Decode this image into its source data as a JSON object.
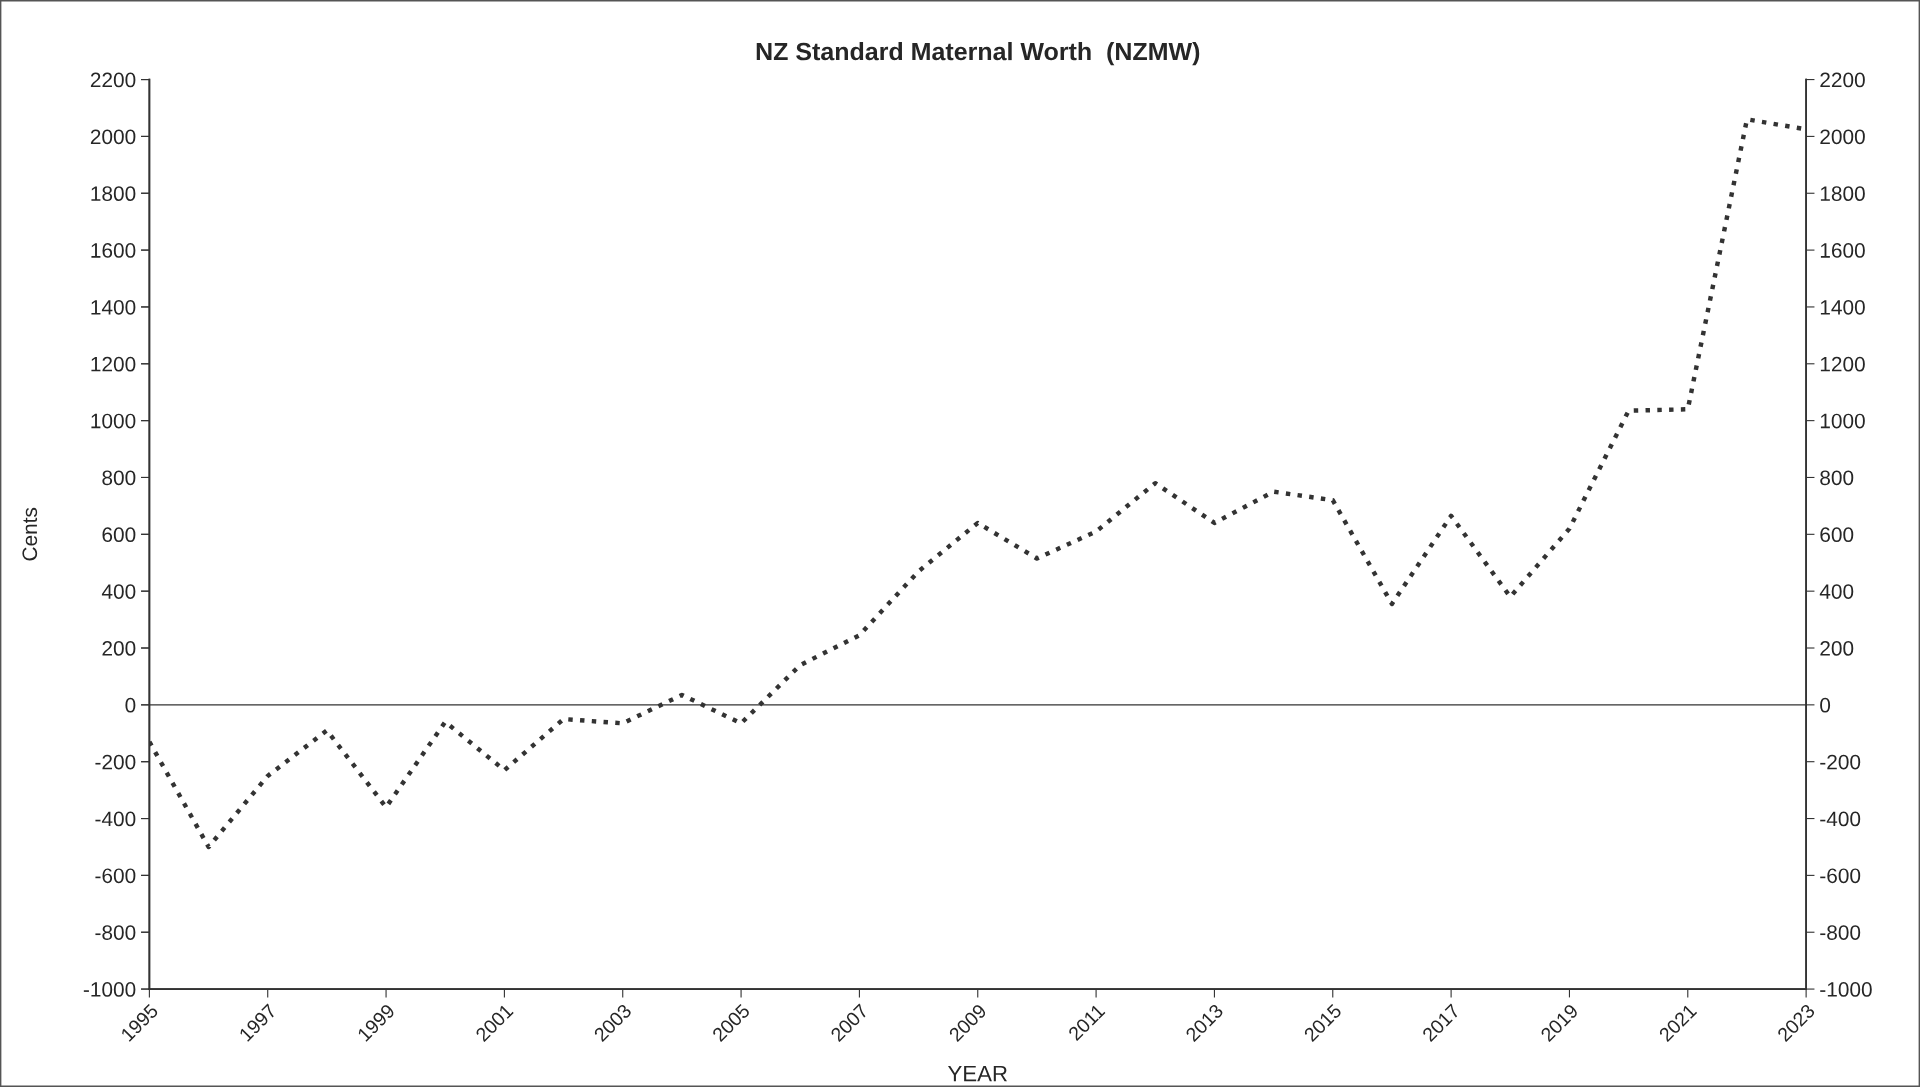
{
  "chart_data": {
    "type": "line",
    "title": "NZ Standard Maternal Worth  (NZMW)",
    "xlabel": "YEAR",
    "ylabel": "Cents",
    "x": [
      1995,
      1996,
      1997,
      1998,
      1999,
      2000,
      2001,
      2002,
      2003,
      2004,
      2005,
      2006,
      2007,
      2008,
      2009,
      2010,
      2011,
      2012,
      2013,
      2014,
      2015,
      2016,
      2017,
      2018,
      2019,
      2020,
      2021,
      2022,
      2023
    ],
    "series": [
      {
        "color": "#333333",
        "values": [
          -130,
          -500,
          -250,
          -90,
          -360,
          -60,
          -230,
          -50,
          -65,
          35,
          -65,
          140,
          245,
          470,
          640,
          515,
          610,
          780,
          640,
          750,
          720,
          355,
          665,
          380,
          620,
          1035,
          1040,
          2060,
          2025
        ]
      }
    ],
    "xlim": [
      1995,
      2023
    ],
    "xticks": [
      1995,
      1997,
      1999,
      2001,
      2003,
      2005,
      2007,
      2009,
      2011,
      2013,
      2015,
      2017,
      2019,
      2021,
      2023
    ],
    "ylim": [
      -1000,
      2200
    ],
    "yticks": [
      -1000,
      -800,
      -600,
      -400,
      -200,
      0,
      200,
      400,
      600,
      800,
      1000,
      1200,
      1400,
      1600,
      1800,
      2000,
      2200
    ],
    "y2lim": [
      -1000,
      2200
    ],
    "y2ticks": [
      -1000,
      -800,
      -600,
      -400,
      -200,
      0,
      200,
      400,
      600,
      800,
      1000,
      1200,
      1400,
      1600,
      1800,
      2000,
      2200
    ],
    "ref_lines": [
      {
        "axis": "y",
        "value": 0,
        "color": "#333333",
        "line_style": "solid"
      }
    ],
    "marker": "none",
    "line_style": "dotted"
  }
}
